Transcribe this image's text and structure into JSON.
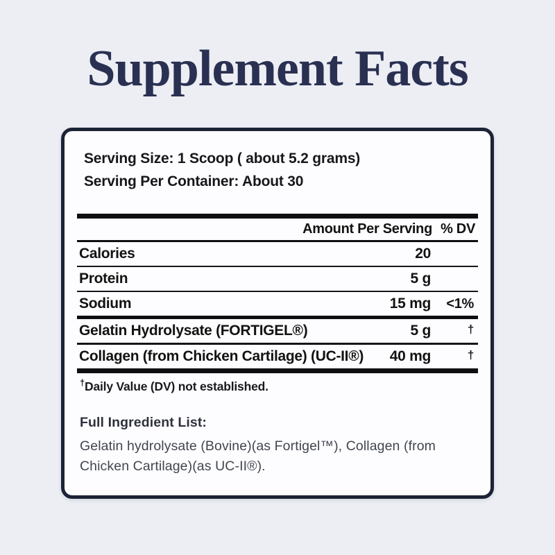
{
  "page": {
    "title": "Supplement Facts",
    "background_color": "#eceef4",
    "title_color": "#2a3051",
    "card_border_color": "#1d2336"
  },
  "panel": {
    "serving_size": "Serving Size: 1 Scoop ( about 5.2 grams)",
    "servings_per_container": "Serving Per Container: About 30",
    "table": {
      "header": {
        "amount": "Amount Per Serving",
        "dv": "% DV"
      },
      "rows": [
        {
          "name": "Calories",
          "amount": "20",
          "dv": ""
        },
        {
          "name": "Protein",
          "amount": "5 g",
          "dv": ""
        },
        {
          "name": "Sodium",
          "amount": "15 mg",
          "dv": "<1%"
        },
        {
          "name": "Gelatin Hydrolysate (FORTIGEL®)",
          "amount": "5 g",
          "dv": "†"
        },
        {
          "name": "Collagen (from Chicken Cartilage) (UC-II®)",
          "amount": "40 mg",
          "dv": "†"
        }
      ],
      "footnote_symbol": "†",
      "footnote_text": "Daily Value (DV) not established."
    },
    "ingredients": {
      "heading": "Full Ingredient List:",
      "text": "Gelatin hydrolysate (Bovine)(as Fortigel™), Collagen (from Chicken Cartilage)(as UC-II®)."
    }
  }
}
